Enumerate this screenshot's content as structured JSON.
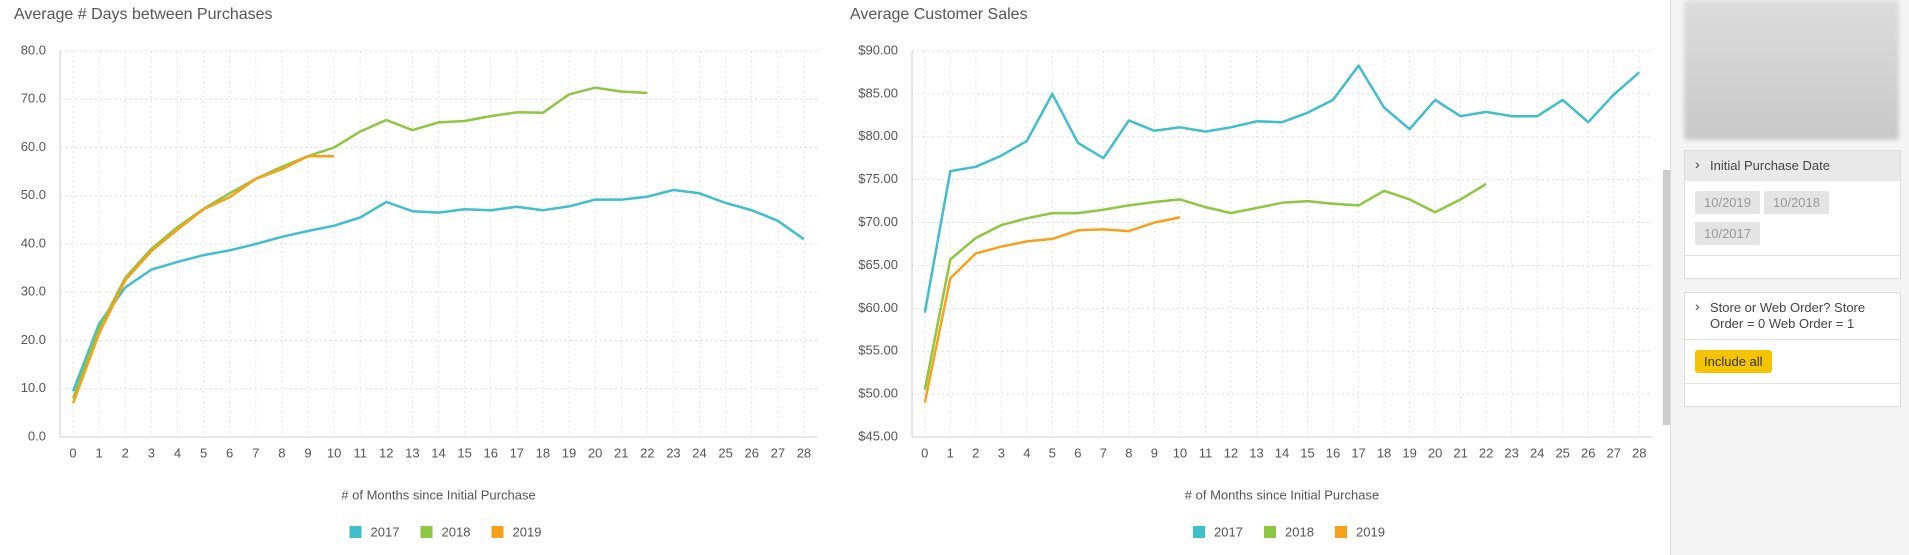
{
  "chart_data": [
    {
      "type": "line",
      "title": "Average # Days between Purchases",
      "x_label": "# of Months since Initial Purchase",
      "x": [
        0,
        1,
        2,
        3,
        4,
        5,
        6,
        7,
        8,
        9,
        10,
        11,
        12,
        13,
        14,
        15,
        16,
        17,
        18,
        19,
        20,
        21,
        22,
        23,
        24,
        25,
        26,
        27,
        28
      ],
      "xlim": [
        -0.5,
        28.5
      ],
      "xticks": [
        0,
        1,
        2,
        3,
        4,
        5,
        6,
        7,
        8,
        9,
        10,
        11,
        12,
        13,
        14,
        15,
        16,
        17,
        18,
        19,
        20,
        21,
        22,
        23,
        24,
        25,
        26,
        27,
        28
      ],
      "ylim": [
        0,
        80
      ],
      "yticks": [
        {
          "value": 0,
          "label": "0.0"
        },
        {
          "value": 10,
          "label": "10.0"
        },
        {
          "value": 20,
          "label": "20.0"
        },
        {
          "value": 30,
          "label": "30.0"
        },
        {
          "value": 40,
          "label": "40.0"
        },
        {
          "value": 50,
          "label": "50.0"
        },
        {
          "value": 60,
          "label": "60.0"
        },
        {
          "value": 70,
          "label": "70.0"
        },
        {
          "value": 80,
          "label": "80.0"
        }
      ],
      "grid": true,
      "series": [
        {
          "name": "2017",
          "color": "#3fbfcc",
          "values": [
            9.5,
            23.5,
            31,
            34.7,
            36.3,
            37.7,
            38.7,
            40,
            41.5,
            42.7,
            43.8,
            45.5,
            48.7,
            46.8,
            46.5,
            47.2,
            47,
            47.7,
            47,
            47.8,
            49.2,
            49.2,
            49.8,
            51.2,
            50.5,
            48.5,
            47,
            44.8,
            41
          ]
        },
        {
          "name": "2018",
          "color": "#8dc63f",
          "values": [
            8,
            22.5,
            33,
            39,
            43.5,
            47.3,
            50.5,
            53.5,
            56,
            58.2,
            60,
            63.3,
            65.7,
            63.6,
            65.2,
            65.5,
            66.5,
            67.3,
            67.2,
            71,
            72.4,
            71.6,
            71.3,
            null,
            null,
            null,
            null,
            null,
            null
          ]
        },
        {
          "name": "2019",
          "color": "#f7a11a",
          "values": [
            7,
            21.5,
            32.5,
            38.5,
            43,
            47.2,
            49.7,
            53.5,
            55.5,
            58.2,
            58.2,
            null,
            null,
            null,
            null,
            null,
            null,
            null,
            null,
            null,
            null,
            null,
            null,
            null,
            null,
            null,
            null,
            null,
            null
          ]
        }
      ]
    },
    {
      "type": "line",
      "title": "Average Customer Sales",
      "x_label": "# of Months since Initial Purchase",
      "x": [
        0,
        1,
        2,
        3,
        4,
        5,
        6,
        7,
        8,
        9,
        10,
        11,
        12,
        13,
        14,
        15,
        16,
        17,
        18,
        19,
        20,
        21,
        22,
        23,
        24,
        25,
        26,
        27,
        28
      ],
      "xlim": [
        -0.5,
        28.5
      ],
      "xticks": [
        0,
        1,
        2,
        3,
        4,
        5,
        6,
        7,
        8,
        9,
        10,
        11,
        12,
        13,
        14,
        15,
        16,
        17,
        18,
        19,
        20,
        21,
        22,
        23,
        24,
        25,
        26,
        27,
        28
      ],
      "ylim": [
        45,
        90
      ],
      "yticks": [
        {
          "value": 45,
          "label": "$45.00"
        },
        {
          "value": 50,
          "label": "$50.00"
        },
        {
          "value": 55,
          "label": "$55.00"
        },
        {
          "value": 60,
          "label": "$60.00"
        },
        {
          "value": 65,
          "label": "$65.00"
        },
        {
          "value": 70,
          "label": "$70.00"
        },
        {
          "value": 75,
          "label": "$75.00"
        },
        {
          "value": 80,
          "label": "$80.00"
        },
        {
          "value": 85,
          "label": "$85.00"
        },
        {
          "value": 90,
          "label": "$90.00"
        }
      ],
      "grid": true,
      "series": [
        {
          "name": "2017",
          "color": "#3fbfcc",
          "values": [
            59.5,
            76,
            76.5,
            77.8,
            79.5,
            85,
            79.3,
            77.5,
            81.9,
            80.7,
            81.1,
            80.6,
            81.1,
            81.8,
            81.7,
            82.8,
            84.3,
            88.3,
            83.4,
            80.9,
            84.3,
            82.4,
            82.9,
            82.4,
            82.4,
            84.3,
            81.7,
            84.9,
            87.5
          ]
        },
        {
          "name": "2018",
          "color": "#8dc63f",
          "values": [
            50.5,
            65.7,
            68.2,
            69.7,
            70.5,
            71.1,
            71.1,
            71.5,
            72,
            72.4,
            72.7,
            71.8,
            71.1,
            71.7,
            72.3,
            72.5,
            72.2,
            72,
            73.7,
            72.7,
            71.2,
            72.7,
            74.5,
            null,
            null,
            null,
            null,
            null,
            null
          ]
        },
        {
          "name": "2019",
          "color": "#f7a11a",
          "values": [
            49,
            63.5,
            66.4,
            67.2,
            67.8,
            68.1,
            69.1,
            69.2,
            69,
            70,
            70.6,
            null,
            null,
            null,
            null,
            null,
            null,
            null,
            null,
            null,
            null,
            null,
            null,
            null,
            null,
            null,
            null,
            null,
            null
          ]
        }
      ]
    }
  ],
  "sidebar": {
    "filters": [
      {
        "title": "Initial Purchase Date",
        "chips": [
          "10/2019",
          "10/2018",
          "10/2017"
        ]
      },
      {
        "title": "Store or Web Order? Store Order = 0 Web Order = 1",
        "button": "Include all"
      }
    ]
  }
}
